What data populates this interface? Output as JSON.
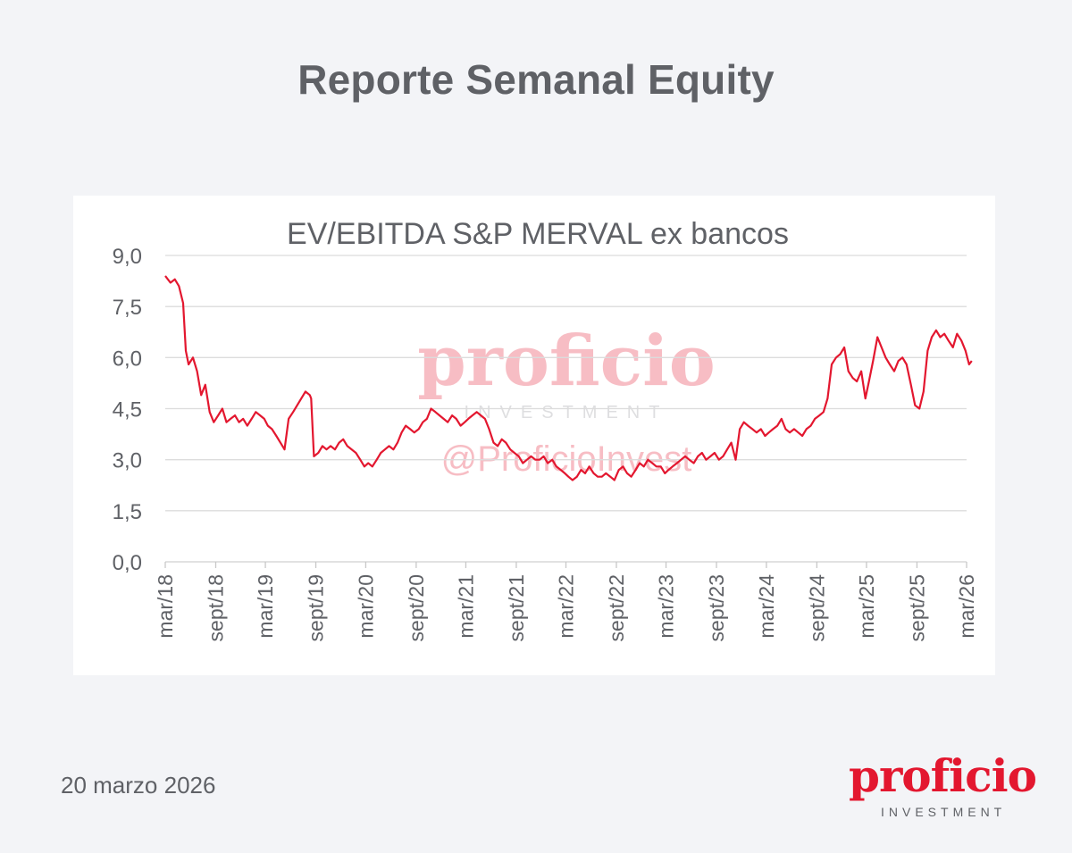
{
  "header": {
    "title": "Reporte Semanal Equity"
  },
  "footer": {
    "date": "20 marzo 2026"
  },
  "logo": {
    "word": "proficio",
    "sub": "INVESTMENT",
    "color": "#e3172f"
  },
  "watermark": {
    "word": "proficio",
    "sub": "INVESTMENT",
    "handle": "@ProficioInvest"
  },
  "chart_data": {
    "type": "line",
    "title": "EV/EBITDA S&P MERVAL ex bancos",
    "xlabel": "",
    "ylabel": "",
    "ylim": [
      0,
      9
    ],
    "yticks": [
      0,
      1.5,
      3,
      4.5,
      6,
      7.5,
      9
    ],
    "ytick_labels": [
      "0,0",
      "1,5",
      "3,0",
      "4,5",
      "6,0",
      "7,5",
      "9,0"
    ],
    "xlim": [
      "2018-03",
      "2026-03"
    ],
    "xticks": [
      "2018-03",
      "2018-09",
      "2019-03",
      "2019-09",
      "2020-03",
      "2020-09",
      "2021-03",
      "2021-09",
      "2022-03",
      "2022-09",
      "2023-03",
      "2023-09",
      "2024-03",
      "2024-09",
      "2025-03",
      "2025-09",
      "2026-03"
    ],
    "xtick_labels": [
      "mar/18",
      "sept/18",
      "mar/19",
      "sept/19",
      "mar/20",
      "sept/20",
      "mar/21",
      "sept/21",
      "mar/22",
      "sept/22",
      "mar/23",
      "sept/23",
      "mar/24",
      "sept/24",
      "mar/25",
      "sept/25",
      "mar/26"
    ],
    "grid": true,
    "line_color": "#e3172f",
    "series": [
      {
        "x": [
          "2018-03-01",
          "2018-03-20",
          "2018-04-05",
          "2018-04-20",
          "2018-05-05",
          "2018-05-15",
          "2018-05-25",
          "2018-06-10",
          "2018-06-25",
          "2018-07-10",
          "2018-07-25",
          "2018-08-10",
          "2018-08-25",
          "2018-09-10",
          "2018-09-25",
          "2018-10-10",
          "2018-10-25",
          "2018-11-10",
          "2018-11-25",
          "2018-12-10",
          "2018-12-25",
          "2019-01-10",
          "2019-01-25",
          "2019-02-10",
          "2019-02-25",
          "2019-03-10",
          "2019-03-25",
          "2019-04-10",
          "2019-04-25",
          "2019-05-10",
          "2019-05-25",
          "2019-06-10",
          "2019-06-25",
          "2019-07-10",
          "2019-07-25",
          "2019-08-10",
          "2019-08-15",
          "2019-08-25",
          "2019-09-10",
          "2019-09-25",
          "2019-10-10",
          "2019-10-25",
          "2019-11-10",
          "2019-11-25",
          "2019-12-10",
          "2019-12-25",
          "2020-01-10",
          "2020-01-25",
          "2020-02-10",
          "2020-02-25",
          "2020-03-10",
          "2020-03-25",
          "2020-04-10",
          "2020-04-25",
          "2020-05-10",
          "2020-05-25",
          "2020-06-10",
          "2020-06-25",
          "2020-07-10",
          "2020-07-25",
          "2020-08-10",
          "2020-08-25",
          "2020-09-10",
          "2020-09-25",
          "2020-10-10",
          "2020-10-25",
          "2020-11-10",
          "2020-11-25",
          "2020-12-10",
          "2020-12-25",
          "2021-01-10",
          "2021-01-25",
          "2021-02-10",
          "2021-02-25",
          "2021-03-10",
          "2021-03-25",
          "2021-04-10",
          "2021-04-25",
          "2021-05-10",
          "2021-05-25",
          "2021-06-10",
          "2021-06-25",
          "2021-07-10",
          "2021-07-25",
          "2021-08-10",
          "2021-08-25",
          "2021-09-10",
          "2021-09-25",
          "2021-10-10",
          "2021-10-25",
          "2021-11-10",
          "2021-11-25",
          "2021-12-10",
          "2021-12-25",
          "2022-01-10",
          "2022-01-25",
          "2022-02-10",
          "2022-02-25",
          "2022-03-10",
          "2022-03-25",
          "2022-04-10",
          "2022-04-25",
          "2022-05-10",
          "2022-05-25",
          "2022-06-10",
          "2022-06-25",
          "2022-07-10",
          "2022-07-25",
          "2022-08-10",
          "2022-08-25",
          "2022-09-10",
          "2022-09-25",
          "2022-10-10",
          "2022-10-25",
          "2022-11-10",
          "2022-11-25",
          "2022-12-10",
          "2022-12-25",
          "2023-01-10",
          "2023-01-25",
          "2023-02-10",
          "2023-02-25",
          "2023-03-10",
          "2023-03-25",
          "2023-04-10",
          "2023-04-25",
          "2023-05-10",
          "2023-05-25",
          "2023-06-10",
          "2023-06-25",
          "2023-07-10",
          "2023-07-25",
          "2023-08-10",
          "2023-08-25",
          "2023-09-10",
          "2023-09-25",
          "2023-10-10",
          "2023-10-25",
          "2023-11-10",
          "2023-11-25",
          "2023-12-10",
          "2023-12-25",
          "2024-01-10",
          "2024-01-25",
          "2024-02-10",
          "2024-02-25",
          "2024-03-10",
          "2024-03-25",
          "2024-04-10",
          "2024-04-25",
          "2024-05-10",
          "2024-05-25",
          "2024-06-10",
          "2024-06-25",
          "2024-07-10",
          "2024-07-25",
          "2024-08-10",
          "2024-08-25",
          "2024-09-10",
          "2024-09-25",
          "2024-10-10",
          "2024-10-25",
          "2024-11-10",
          "2024-11-25",
          "2024-12-10",
          "2024-12-25",
          "2025-01-10",
          "2025-01-25",
          "2025-02-10",
          "2025-02-25",
          "2025-03-10",
          "2025-03-25",
          "2025-04-10",
          "2025-04-25",
          "2025-05-10",
          "2025-05-25",
          "2025-06-10",
          "2025-06-25",
          "2025-07-10",
          "2025-07-25",
          "2025-08-10",
          "2025-08-25",
          "2025-09-10",
          "2025-09-25",
          "2025-10-10",
          "2025-10-25",
          "2025-11-10",
          "2025-11-25",
          "2025-12-10",
          "2025-12-25",
          "2026-01-10",
          "2026-01-25",
          "2026-02-10",
          "2026-02-25",
          "2026-03-10",
          "2026-03-20"
        ],
        "values": [
          8.4,
          8.2,
          8.3,
          8.1,
          7.6,
          6.2,
          5.8,
          6.0,
          5.6,
          4.9,
          5.2,
          4.4,
          4.1,
          4.3,
          4.5,
          4.1,
          4.2,
          4.3,
          4.1,
          4.2,
          4.0,
          4.2,
          4.4,
          4.3,
          4.2,
          4.0,
          3.9,
          3.7,
          3.5,
          3.3,
          4.2,
          4.4,
          4.6,
          4.8,
          5.0,
          4.9,
          4.8,
          3.1,
          3.2,
          3.4,
          3.3,
          3.4,
          3.3,
          3.5,
          3.6,
          3.4,
          3.3,
          3.2,
          3.0,
          2.8,
          2.9,
          2.8,
          3.0,
          3.2,
          3.3,
          3.4,
          3.3,
          3.5,
          3.8,
          4.0,
          3.9,
          3.8,
          3.9,
          4.1,
          4.2,
          4.5,
          4.4,
          4.3,
          4.2,
          4.1,
          4.3,
          4.2,
          4.0,
          4.1,
          4.2,
          4.3,
          4.4,
          4.3,
          4.2,
          3.9,
          3.5,
          3.4,
          3.6,
          3.5,
          3.3,
          3.2,
          3.1,
          2.9,
          3.0,
          3.1,
          3.0,
          3.0,
          3.1,
          2.9,
          3.0,
          2.8,
          2.7,
          2.6,
          2.5,
          2.4,
          2.5,
          2.7,
          2.6,
          2.8,
          2.6,
          2.5,
          2.5,
          2.6,
          2.5,
          2.4,
          2.7,
          2.8,
          2.6,
          2.5,
          2.7,
          2.9,
          2.8,
          3.0,
          2.9,
          2.8,
          2.8,
          2.6,
          2.7,
          2.8,
          2.9,
          3.0,
          3.1,
          3.0,
          2.9,
          3.1,
          3.2,
          3.0,
          3.1,
          3.2,
          3.0,
          3.1,
          3.3,
          3.5,
          3.0,
          3.9,
          4.1,
          4.0,
          3.9,
          3.8,
          3.9,
          3.7,
          3.8,
          3.9,
          4.0,
          4.2,
          3.9,
          3.8,
          3.9,
          3.8,
          3.7,
          3.9,
          4.0,
          4.2,
          4.3,
          4.4,
          4.8,
          5.8,
          6.0,
          6.1,
          6.3,
          5.6,
          5.4,
          5.3,
          5.6,
          4.8,
          5.3,
          5.9,
          6.6,
          6.3,
          6.0,
          5.8,
          5.6,
          5.9,
          6.0,
          5.8,
          5.2,
          4.6,
          4.5,
          5.0,
          6.2,
          6.6,
          6.8,
          6.6,
          6.7,
          6.5,
          6.3,
          6.7,
          6.5,
          6.2,
          5.8,
          5.9
        ]
      }
    ]
  }
}
